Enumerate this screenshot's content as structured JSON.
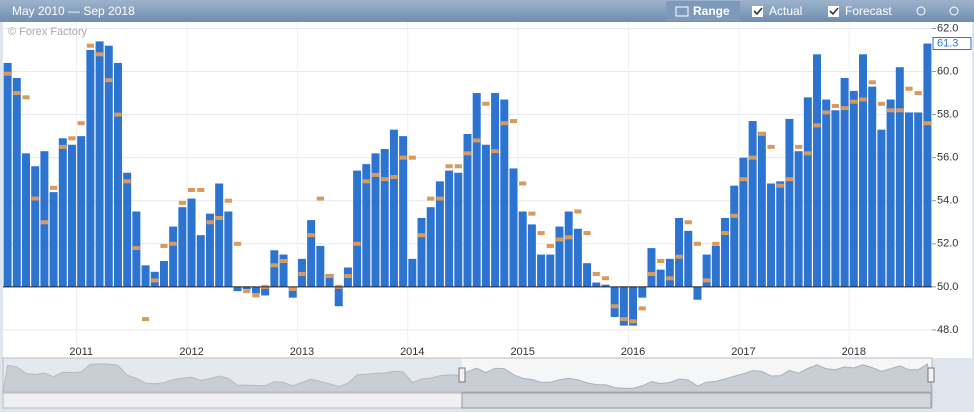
{
  "chart_data": {
    "type": "bar",
    "title": "May 2010 — Sep 2018",
    "watermark": "© Forex Factory",
    "controls": [
      "Range",
      "Actual",
      "Forecast"
    ],
    "categories": [
      null,
      null,
      null,
      null,
      null,
      null,
      null,
      null,
      "2011",
      null,
      null,
      null,
      null,
      null,
      null,
      null,
      null,
      null,
      null,
      null,
      "2012",
      null,
      null,
      null,
      null,
      null,
      null,
      null,
      null,
      null,
      null,
      null,
      "2013",
      null,
      null,
      null,
      null,
      null,
      null,
      null,
      null,
      null,
      null,
      null,
      "2014",
      null,
      null,
      null,
      null,
      null,
      null,
      null,
      null,
      null,
      null,
      null,
      "2015",
      null,
      null,
      null,
      null,
      null,
      null,
      null,
      null,
      null,
      null,
      null,
      "2016",
      null,
      null,
      null,
      null,
      null,
      null,
      null,
      null,
      null,
      null,
      null,
      "2017",
      null,
      null,
      null,
      null,
      null,
      null,
      null,
      null,
      null,
      null,
      null,
      "2018",
      null,
      null,
      null,
      null,
      null,
      null,
      null,
      null
    ],
    "series": [
      {
        "name": "Actual",
        "color": "#2c74d0",
        "values": [
          60.4,
          59.7,
          56.2,
          55.6,
          56.3,
          54.4,
          56.9,
          56.6,
          57.0,
          61.0,
          61.4,
          61.2,
          60.4,
          55.3,
          53.5,
          51.0,
          50.7,
          51.2,
          52.8,
          53.7,
          54.1,
          52.4,
          53.4,
          54.8,
          53.5,
          49.8,
          49.9,
          49.7,
          49.6,
          51.7,
          51.5,
          49.5,
          51.3,
          53.1,
          51.9,
          50.6,
          49.1,
          50.9,
          55.4,
          55.7,
          56.2,
          56.4,
          57.3,
          57.0,
          51.3,
          53.2,
          53.7,
          54.9,
          55.4,
          55.3,
          57.1,
          59.0,
          56.6,
          59.0,
          58.7,
          55.5,
          53.5,
          52.9,
          51.5,
          51.5,
          52.8,
          53.5,
          52.7,
          51.1,
          50.2,
          50.1,
          48.6,
          48.2,
          48.2,
          49.5,
          51.8,
          50.8,
          51.3,
          53.2,
          52.6,
          49.4,
          51.5,
          51.9,
          53.2,
          54.7,
          56.0,
          57.7,
          57.2,
          54.8,
          54.9,
          57.8,
          56.3,
          58.8,
          60.8,
          58.7,
          58.2,
          59.7,
          59.1,
          60.8,
          59.3,
          57.3,
          58.7,
          60.2,
          58.1,
          58.1,
          61.3
        ]
      },
      {
        "name": "Forecast",
        "color": "#d99a5b",
        "values": [
          59.9,
          59.0,
          58.8,
          54.1,
          53.0,
          54.6,
          56.5,
          56.9,
          57.6,
          61.2,
          60.8,
          59.6,
          58.0,
          54.9,
          51.8,
          48.5,
          50.3,
          51.9,
          52.0,
          53.9,
          54.5,
          54.5,
          53.0,
          53.2,
          54.0,
          52.0,
          49.8,
          49.6,
          50.0,
          51.0,
          51.2,
          49.9,
          50.6,
          52.4,
          54.1,
          50.5,
          50.0,
          50.5,
          52.0,
          54.9,
          55.2,
          55.0,
          55.1,
          56.0,
          56.0,
          52.4,
          54.1,
          54.1,
          55.6,
          55.6,
          56.2,
          56.8,
          58.5,
          56.3,
          57.6,
          57.7,
          54.8,
          53.4,
          52.5,
          51.9,
          52.2,
          52.3,
          53.5,
          52.5,
          50.6,
          50.4,
          49.1,
          48.5,
          48.4,
          49.0,
          50.6,
          51.2,
          50.4,
          51.4,
          53.0,
          52.0,
          50.3,
          52.0,
          52.5,
          53.3,
          55.0,
          56.0,
          57.1,
          56.5,
          54.7,
          55.0,
          56.5,
          56.2,
          57.5,
          58.1,
          58.4,
          58.3,
          58.6,
          58.7,
          59.5,
          58.5,
          58.2,
          58.2,
          59.2,
          59.0,
          57.6
        ]
      }
    ],
    "baseline": 50,
    "ylim": [
      47.3,
      62.3
    ],
    "yticks": [
      {
        "value": 48,
        "label": "48.0"
      },
      {
        "value": 50,
        "label": "50.0"
      },
      {
        "value": 52,
        "label": "52.0"
      },
      {
        "value": 54,
        "label": "54.0"
      },
      {
        "value": 56,
        "label": "56.0"
      },
      {
        "value": 58,
        "label": "58.0"
      },
      {
        "value": 60,
        "label": "60.0"
      },
      {
        "value": 62,
        "label": "62.0"
      }
    ],
    "grid": true
  }
}
